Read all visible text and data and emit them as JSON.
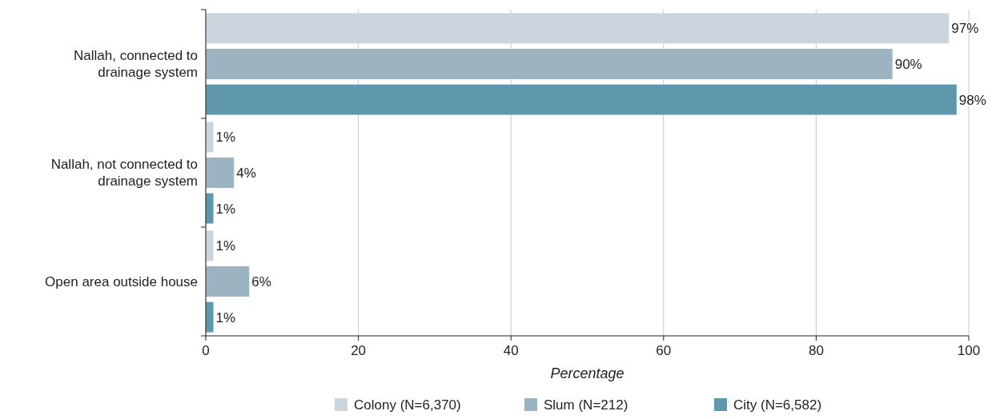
{
  "chart_data": {
    "type": "bar",
    "orientation": "horizontal",
    "xlabel": "Percentage",
    "categories": [
      "Nallah, connected to drainage system",
      "Nallah, not connected to drainage system",
      "Open area outside house"
    ],
    "series": [
      {
        "name": "Colony (N=6,370)",
        "color": "#ccd4dd",
        "values": [
          97.4,
          1.0,
          1.0
        ],
        "value_labels": [
          "97%",
          "1%",
          "1%"
        ]
      },
      {
        "name": "Slum (N=212)",
        "color": "#9cb4bf",
        "values": [
          90.0,
          3.7,
          5.7
        ],
        "value_labels": [
          "90%",
          "4%",
          "6%"
        ]
      },
      {
        "name": "City (N=6,582)",
        "color": "#5f98ad",
        "values": [
          98.4,
          1.0,
          1.0
        ],
        "value_labels": [
          "98%",
          "1%",
          "1%"
        ]
      }
    ],
    "xlim": [
      0,
      100
    ],
    "xticks": [
      0,
      20,
      40,
      60,
      80,
      100
    ],
    "grid": "x",
    "legend": "bottom"
  }
}
